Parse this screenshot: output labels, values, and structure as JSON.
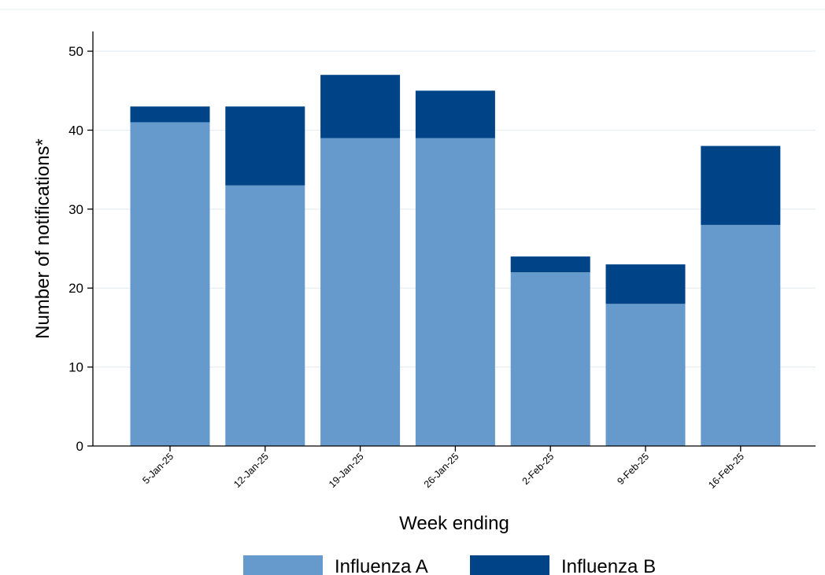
{
  "chart_data": {
    "type": "bar",
    "stacked": true,
    "title": "",
    "xlabel": "Week ending",
    "ylabel": "Number of notifications*",
    "categories": [
      "5-Jan-25",
      "12-Jan-25",
      "19-Jan-25",
      "26-Jan-25",
      "2-Feb-25",
      "9-Feb-25",
      "16-Feb-25"
    ],
    "series": [
      {
        "name": "Influenza A",
        "color": "#6699cc",
        "values": [
          41,
          33,
          39,
          39,
          22,
          18,
          28
        ]
      },
      {
        "name": "Influenza B",
        "color": "#004488",
        "values": [
          2,
          10,
          8,
          6,
          2,
          5,
          10
        ]
      }
    ],
    "ylim": [
      0,
      52.5
    ],
    "yticks": [
      0,
      10,
      20,
      30,
      40,
      50
    ],
    "grid": true,
    "legend_position": "bottom"
  }
}
